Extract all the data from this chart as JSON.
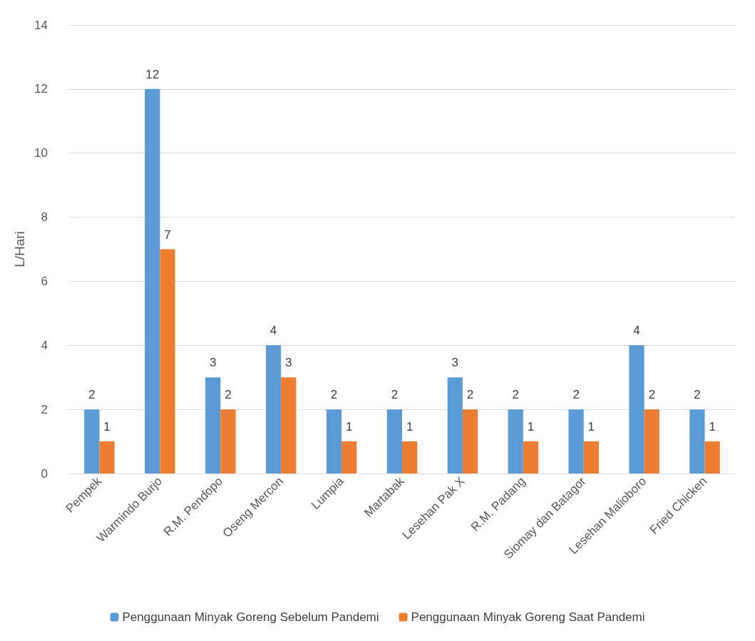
{
  "chart_data": {
    "type": "bar",
    "ylabel": "L/Hari",
    "categories": [
      "Pempek",
      "Warmindo Burjo",
      "R.M. Pendopo",
      "Oseng Mercon",
      "Lumpia",
      "Martabak",
      "Lesehan Pak X",
      "R.M. Padang",
      "Siomay dan Batagor",
      "Lesehan Malioboro",
      "Fried Chicken"
    ],
    "series": [
      {
        "name": "Penggunaan Minyak Goreng Sebelum Pandemi",
        "color": "#5b9bd5",
        "values": [
          2,
          12,
          3,
          4,
          2,
          2,
          3,
          2,
          2,
          4,
          2
        ]
      },
      {
        "name": "Penggunaan Minyak Goreng Saat Pandemi",
        "color": "#ed7d31",
        "values": [
          1,
          7,
          2,
          3,
          1,
          1,
          2,
          1,
          1,
          2,
          1
        ]
      }
    ],
    "ylim": [
      0,
      14
    ],
    "yticks": [
      0,
      2,
      4,
      6,
      8,
      10,
      12,
      14
    ],
    "grid": "y",
    "legend": "bottom",
    "data_labels": true
  }
}
